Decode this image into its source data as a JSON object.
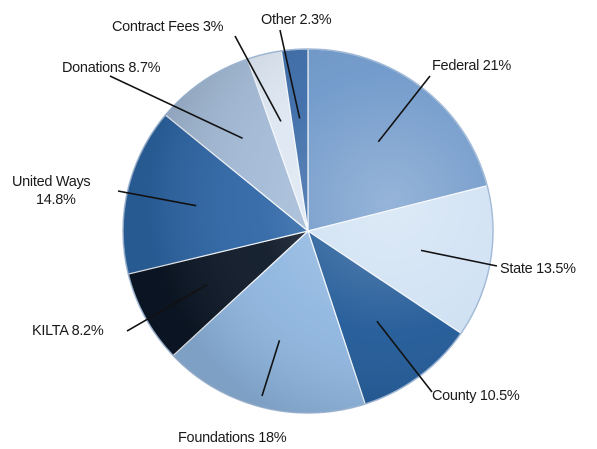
{
  "chart_data": {
    "type": "pie",
    "title": "",
    "start_angle_deg": 0,
    "direction": "clockwise",
    "slices": [
      {
        "label": "Federal 21%",
        "name": "Federal",
        "value": 21,
        "color": "#6d97c9"
      },
      {
        "label": "State 13.5%",
        "name": "State",
        "value": 13.5,
        "color": "#cfe1f3"
      },
      {
        "label": "County 10.5%",
        "name": "County",
        "value": 10.5,
        "color": "#1f5896"
      },
      {
        "label": "Foundations 18%",
        "name": "Foundations",
        "value": 18,
        "color": "#8fb6e0"
      },
      {
        "label": "KILTA 8.2%",
        "name": "KILTA",
        "value": 8.2,
        "color": "#0c1726"
      },
      {
        "label": "United Ways",
        "label2": "14.8%",
        "name": "United Ways",
        "value": 14.8,
        "color": "#2e66a6"
      },
      {
        "label": "Donations 8.7%",
        "name": "Donations",
        "value": 8.7,
        "color": "#a3bad6"
      },
      {
        "label": "Contract Fees 3%",
        "name": "Contract Fees",
        "value": 3,
        "color": "#dde7f2"
      },
      {
        "label": "Other 2.3%",
        "name": "Other",
        "value": 2.3,
        "color": "#3b6ba8"
      }
    ]
  }
}
